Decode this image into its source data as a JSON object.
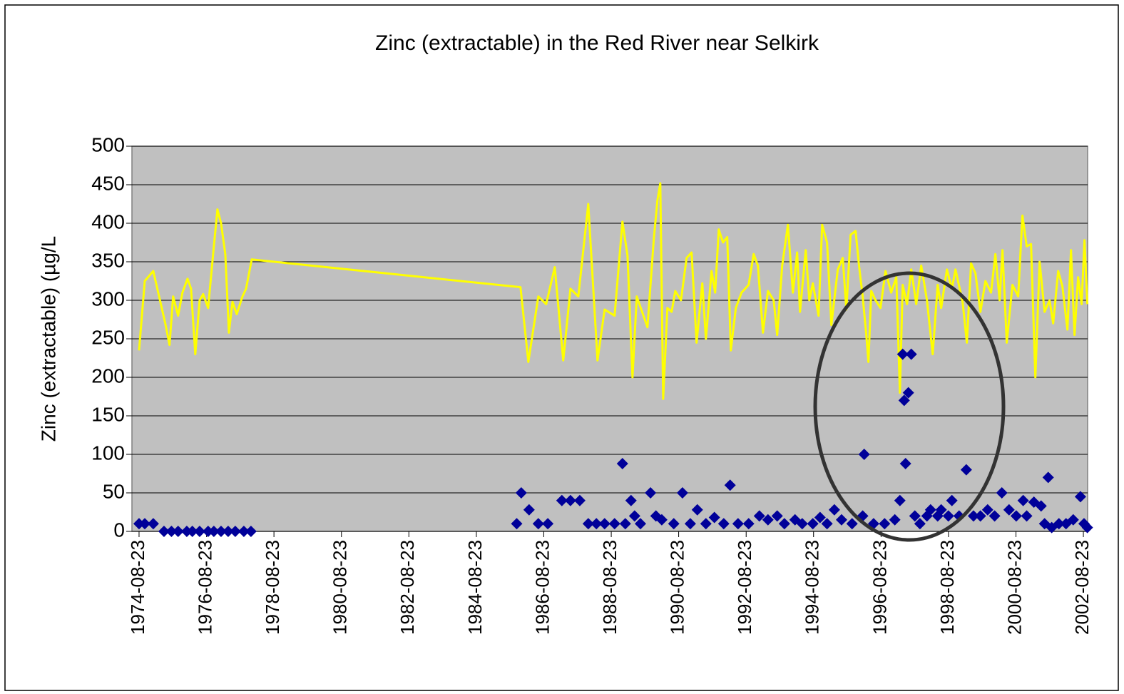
{
  "chart_data": {
    "type": "combo",
    "title": "Zinc (extractable) in the Red River near Selkirk",
    "y_label": "Zinc (extractable) (µg/L",
    "xlim": [
      "1974-06-07",
      "2002-10-08"
    ],
    "xticks": [
      "1974-08-23",
      "1976-08-23",
      "1978-08-23",
      "1980-08-23",
      "1982-08-23",
      "1984-08-23",
      "1986-08-23",
      "1988-08-23",
      "1990-08-23",
      "1992-08-23",
      "1994-08-23",
      "1996-08-23",
      "1998-08-23",
      "2000-08-23",
      "2002-08-23"
    ],
    "ylim": [
      0,
      500
    ],
    "yticks": [
      0,
      50,
      100,
      150,
      200,
      250,
      300,
      350,
      400,
      450,
      500
    ],
    "grid": true,
    "series": [
      {
        "type": "line",
        "color": "#ffff00",
        "x": [
          "1974-08-23",
          "1974-10-24",
          "1975-01-24",
          "1975-06-03",
          "1975-07-19",
          "1975-08-27",
          "1975-10-20",
          "1975-12-06",
          "1976-01-30",
          "1976-03-08",
          "1976-04-23",
          "1976-06-09",
          "1976-07-17",
          "1976-09-09",
          "1976-11-10",
          "1976-12-19",
          "1977-01-27",
          "1977-03-14",
          "1977-04-22",
          "1977-05-31",
          "1977-07-16",
          "1977-09-16",
          "1977-10-25",
          "1977-12-25",
          "1985-12-14",
          "1986-03-09",
          "1986-06-25",
          "1986-09-18",
          "1986-12-20",
          "1987-03-22",
          "1987-06-08",
          "1987-09-01",
          "1987-12-18",
          "1988-03-27",
          "1988-06-12",
          "1988-09-28",
          "1988-12-22",
          "1989-02-15",
          "1989-04-10",
          "1989-05-26",
          "1989-09-19",
          "1989-11-27",
          "1990-01-05",
          "1990-02-05",
          "1990-03-08",
          "1990-04-23",
          "1990-06-08",
          "1990-07-17",
          "1990-09-17",
          "1990-11-17",
          "1991-01-10",
          "1991-03-05",
          "1991-05-06",
          "1991-06-14",
          "1991-08-14",
          "1991-09-22",
          "1991-10-31",
          "1991-12-16",
          "1992-01-31",
          "1992-03-10",
          "1992-05-03",
          "1992-07-04",
          "1992-09-19",
          "1992-11-12",
          "1992-12-28",
          "1993-02-21",
          "1993-04-16",
          "1993-06-17",
          "1993-07-25",
          "1993-09-17",
          "1993-11-18",
          "1994-01-11",
          "1994-02-26",
          "1994-03-29",
          "1994-05-30",
          "1994-07-08",
          "1994-08-15",
          "1994-10-16",
          "1994-11-24",
          "1995-01-16",
          "1995-03-04",
          "1995-05-12",
          "1995-07-05",
          "1995-08-13",
          "1995-09-28",
          "1995-11-21",
          "1995-12-30",
          "1996-02-06",
          "1996-03-16",
          "1996-04-08",
          "1996-05-09",
          "1996-06-24",
          "1996-08-17",
          "1996-10-10",
          "1996-12-11",
          "1997-02-04",
          "1997-03-15",
          "1997-04-14",
          "1997-05-31",
          "1997-07-16",
          "1997-09-08",
          "1997-11-01",
          "1998-01-02",
          "1998-03-05",
          "1998-04-28",
          "1998-06-05",
          "1998-08-06",
          "1998-09-29",
          "1998-11-07",
          "1999-01-23",
          "1999-03-10",
          "1999-04-25",
          "1999-06-11",
          "1999-08-04",
          "1999-09-27",
          "1999-11-27",
          "2000-01-13",
          "2000-02-28",
          "2000-03-30",
          "2000-05-15",
          "2000-07-16",
          "2000-09-16",
          "2000-11-01",
          "2000-12-17",
          "2001-02-02",
          "2001-03-21",
          "2001-05-06",
          "2001-06-29",
          "2001-08-22",
          "2001-09-30",
          "2001-11-23",
          "2002-01-08",
          "2002-03-03",
          "2002-04-11",
          "2002-05-19",
          "2002-06-27",
          "2002-08-04",
          "2002-09-04",
          "2002-10-05"
        ],
        "values": [
          235,
          325,
          338,
          270,
          242,
          305,
          280,
          310,
          328,
          315,
          230,
          300,
          308,
          290,
          370,
          418,
          400,
          360,
          258,
          298,
          282,
          305,
          315,
          353,
          317,
          220,
          305,
          295,
          343,
          222,
          315,
          305,
          425,
          222,
          288,
          280,
          402,
          358,
          200,
          305,
          265,
          380,
          430,
          452,
          172,
          290,
          285,
          312,
          300,
          355,
          362,
          245,
          322,
          250,
          338,
          310,
          392,
          375,
          382,
          235,
          290,
          310,
          320,
          360,
          345,
          258,
          312,
          300,
          255,
          345,
          398,
          310,
          362,
          285,
          365,
          300,
          322,
          280,
          398,
          375,
          268,
          340,
          355,
          288,
          385,
          390,
          343,
          305,
          255,
          220,
          312,
          300,
          290,
          338,
          310,
          330,
          180,
          320,
          295,
          340,
          295,
          345,
          300,
          230,
          320,
          290,
          340,
          315,
          340,
          298,
          245,
          348,
          335,
          285,
          325,
          310,
          360,
          300,
          365,
          245,
          320,
          305,
          410,
          370,
          373,
          200,
          350,
          285,
          300,
          270,
          338,
          318,
          262,
          365,
          255,
          330,
          295,
          378,
          295
        ]
      },
      {
        "type": "scatter",
        "color": "#000099",
        "x": [
          "1974-08-23",
          "1974-10-24",
          "1975-01-24",
          "1975-05-20",
          "1975-08-09",
          "1975-10-20",
          "1976-01-22",
          "1976-03-22",
          "1976-06-09",
          "1976-09-09",
          "1976-11-10",
          "1977-01-27",
          "1977-04-14",
          "1977-06-30",
          "1977-10-01",
          "1977-12-17",
          "1985-11-03",
          "1985-12-22",
          "1986-03-17",
          "1986-06-25",
          "1986-10-06",
          "1987-03-07",
          "1987-06-08",
          "1987-09-17",
          "1987-12-18",
          "1988-03-15",
          "1988-06-12",
          "1988-09-28",
          "1988-12-22",
          "1989-01-22",
          "1989-03-25",
          "1989-05-03",
          "1989-07-05",
          "1989-10-22",
          "1989-12-20",
          "1990-02-21",
          "1990-07-01",
          "1990-10-03",
          "1990-12-27",
          "1991-03-13",
          "1991-06-14",
          "1991-09-14",
          "1991-12-24",
          "1992-03-02",
          "1992-05-27",
          "1992-09-19",
          "1993-01-13",
          "1993-04-16",
          "1993-07-25",
          "1993-10-11",
          "1994-02-03",
          "1994-04-22",
          "1994-08-15",
          "1994-11-01",
          "1995-01-16",
          "1995-04-05",
          "1995-06-22",
          "1995-10-14",
          "1996-02-06",
          "1996-02-22",
          "1996-06-03",
          "1996-09-30",
          "1997-01-19",
          "1997-03-15",
          "1997-04-14",
          "1997-04-30",
          "1997-05-15",
          "1997-06-15",
          "1997-07-16",
          "1997-08-24",
          "1997-10-18",
          "1998-01-02",
          "1998-02-10",
          "1998-04-28",
          "1998-06-05",
          "1998-08-22",
          "1998-09-29",
          "1998-12-16",
          "1999-03-04",
          "1999-05-21",
          "1999-08-04",
          "1999-10-21",
          "2000-01-05",
          "2000-03-23",
          "2000-06-09",
          "2000-08-26",
          "2000-11-09",
          "2000-12-17",
          "2001-03-05",
          "2001-05-22",
          "2001-06-29",
          "2001-08-07",
          "2001-09-14",
          "2001-12-01",
          "2002-02-16",
          "2002-05-05",
          "2002-07-22",
          "2002-08-30",
          "2002-10-05"
        ],
        "values": [
          10,
          10,
          10,
          0,
          0,
          0,
          0,
          0,
          0,
          0,
          0,
          0,
          0,
          0,
          0,
          0,
          10,
          50,
          28,
          10,
          10,
          40,
          40,
          40,
          10,
          10,
          10,
          10,
          88,
          10,
          40,
          20,
          10,
          50,
          20,
          15,
          10,
          50,
          10,
          28,
          10,
          18,
          10,
          60,
          10,
          10,
          20,
          15,
          20,
          10,
          15,
          10,
          10,
          18,
          10,
          28,
          15,
          10,
          20,
          100,
          10,
          10,
          15,
          40,
          230,
          170,
          88,
          180,
          230,
          20,
          10,
          20,
          28,
          20,
          28,
          20,
          40,
          20,
          80,
          20,
          20,
          28,
          20,
          50,
          28,
          20,
          40,
          20,
          38,
          33,
          10,
          70,
          5,
          10,
          10,
          15,
          45,
          10,
          5
        ]
      }
    ]
  }
}
